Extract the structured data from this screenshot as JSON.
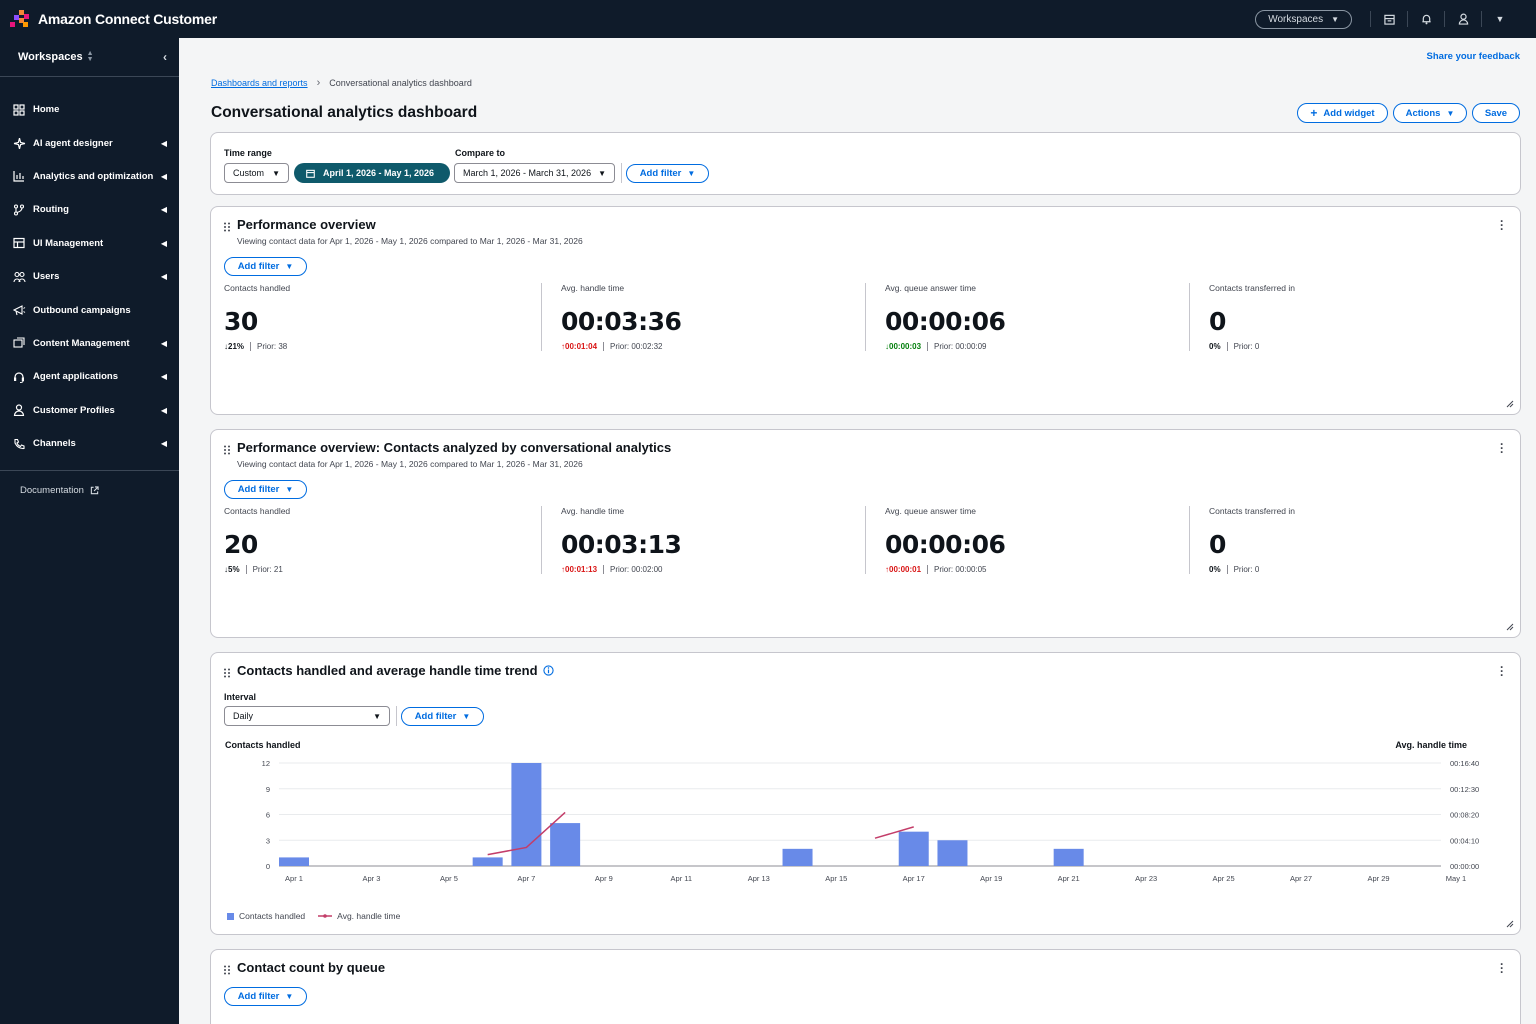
{
  "app": {
    "title": "Amazon Connect Customer"
  },
  "topbar": {
    "workspaces_label": "Workspaces"
  },
  "sidebar": {
    "header": "Workspaces",
    "items": [
      {
        "label": "Home",
        "icon": "home-grid-icon",
        "has_caret": false
      },
      {
        "label": "AI agent designer",
        "icon": "sparkle-icon",
        "has_caret": true
      },
      {
        "label": "Analytics and optimization",
        "icon": "bar-chart-icon",
        "has_caret": true
      },
      {
        "label": "Routing",
        "icon": "routing-icon",
        "has_caret": true
      },
      {
        "label": "UI Management",
        "icon": "layout-icon",
        "has_caret": true
      },
      {
        "label": "Users",
        "icon": "users-icon",
        "has_caret": true
      },
      {
        "label": "Outbound campaigns",
        "icon": "megaphone-icon",
        "has_caret": false
      },
      {
        "label": "Content Management",
        "icon": "content-icon",
        "has_caret": true
      },
      {
        "label": "Agent applications",
        "icon": "headset-icon",
        "has_caret": true
      },
      {
        "label": "Customer Profiles",
        "icon": "person-icon",
        "has_caret": true
      },
      {
        "label": "Channels",
        "icon": "phone-icon",
        "has_caret": true
      }
    ],
    "documentation": "Documentation"
  },
  "page": {
    "feedback": "Share your feedback",
    "breadcrumbs": [
      "Dashboards and reports",
      "Conversational analytics dashboard"
    ],
    "title": "Conversational analytics dashboard",
    "actions": {
      "add_widget": "Add widget",
      "actions": "Actions",
      "save": "Save"
    }
  },
  "filters": {
    "time_range_label": "Time range",
    "time_range_mode": "Custom",
    "time_range_value": "April 1, 2026 - May 1, 2026",
    "compare_label": "Compare to",
    "compare_value": "March 1, 2026 - March 31, 2026",
    "add_filter": "Add filter"
  },
  "widget1": {
    "title": "Performance overview",
    "subtitle": "Viewing contact data for Apr 1, 2026 - May 1, 2026 compared to Mar 1, 2026 - Mar 31, 2026",
    "add_filter": "Add filter",
    "metrics": [
      {
        "label": "Contacts handled",
        "value": "30",
        "delta": "21%",
        "direction": "down",
        "tone": "dark",
        "prior": "Prior: 38"
      },
      {
        "label": "Avg. handle time",
        "value": "00:03:36",
        "delta": "00:01:04",
        "direction": "up",
        "tone": "red",
        "prior": "Prior: 00:02:32"
      },
      {
        "label": "Avg. queue answer time",
        "value": "00:00:06",
        "delta": "00:00:03",
        "direction": "down",
        "tone": "green",
        "prior": "Prior: 00:00:09"
      },
      {
        "label": "Contacts transferred in",
        "value": "0",
        "delta": "0%",
        "direction": "none",
        "tone": "dark",
        "prior": "Prior: 0"
      }
    ]
  },
  "widget2": {
    "title": "Performance overview: Contacts analyzed by conversational analytics",
    "subtitle": "Viewing contact data for Apr 1, 2026 - May 1, 2026 compared to Mar 1, 2026 - Mar 31, 2026",
    "add_filter": "Add filter",
    "metrics": [
      {
        "label": "Contacts handled",
        "value": "20",
        "delta": "5%",
        "direction": "down",
        "tone": "dark",
        "prior": "Prior: 21"
      },
      {
        "label": "Avg. handle time",
        "value": "00:03:13",
        "delta": "00:01:13",
        "direction": "up",
        "tone": "red",
        "prior": "Prior: 00:02:00"
      },
      {
        "label": "Avg. queue answer time",
        "value": "00:00:06",
        "delta": "00:00:01",
        "direction": "up",
        "tone": "red",
        "prior": "Prior: 00:00:05"
      },
      {
        "label": "Contacts transferred in",
        "value": "0",
        "delta": "0%",
        "direction": "none",
        "tone": "dark",
        "prior": "Prior: 0"
      }
    ]
  },
  "widget3": {
    "title": "Contacts handled and average handle time trend",
    "interval_label": "Interval",
    "interval_value": "Daily",
    "add_filter": "Add filter",
    "legend": [
      "Contacts handled",
      "Avg. handle time"
    ]
  },
  "widget4": {
    "title": "Contact count by queue",
    "add_filter": "Add filter"
  },
  "colors": {
    "bar": "#688ae8",
    "line": "#c33d69",
    "accent": "#006ce0",
    "pill": "#0f5a6b"
  },
  "chart_data": {
    "type": "bar",
    "ylabel": "Contacts handled",
    "y2label": "Avg. handle time",
    "ylim": [
      0,
      12
    ],
    "yticks": [
      "0",
      "3",
      "6",
      "9",
      "12"
    ],
    "y2ticks": [
      "00:00:00",
      "00:04:10",
      "00:08:20",
      "00:12:30",
      "00:16:40"
    ],
    "x": [
      "Apr 1",
      "Apr 2",
      "Apr 3",
      "Apr 4",
      "Apr 5",
      "Apr 6",
      "Apr 7",
      "Apr 8",
      "Apr 9",
      "Apr 10",
      "Apr 11",
      "Apr 12",
      "Apr 13",
      "Apr 14",
      "Apr 15",
      "Apr 16",
      "Apr 17",
      "Apr 18",
      "Apr 19",
      "Apr 20",
      "Apr 21",
      "Apr 22",
      "Apr 23",
      "Apr 24",
      "Apr 25",
      "Apr 26",
      "Apr 27",
      "Apr 28",
      "Apr 29",
      "Apr 30",
      "May 1"
    ],
    "xtick_labels": [
      "Apr 1",
      "Apr 3",
      "Apr 5",
      "Apr 7",
      "Apr 9",
      "Apr 11",
      "Apr 13",
      "Apr 15",
      "Apr 17",
      "Apr 19",
      "Apr 21",
      "Apr 23",
      "Apr 25",
      "Apr 27",
      "Apr 29",
      "May 1"
    ],
    "series": [
      {
        "name": "Contacts handled",
        "type": "bar",
        "values": [
          1,
          0,
          0,
          0,
          0,
          1,
          12,
          5,
          0,
          0,
          0,
          0,
          0,
          2,
          0,
          0,
          4,
          3,
          0,
          0,
          2,
          0,
          0,
          0,
          0,
          0,
          0,
          0,
          0,
          0,
          0
        ]
      },
      {
        "name": "Avg. handle time",
        "type": "line",
        "segments": [
          {
            "x": [
              "Apr 6",
              "Apr 7",
              "Apr 8"
            ],
            "values": [
              "00:01:50",
              "00:03:00",
              "00:08:40"
            ]
          },
          {
            "x": [
              "Apr 16",
              "Apr 17"
            ],
            "values": [
              "00:04:30",
              "00:06:20"
            ]
          }
        ]
      }
    ]
  }
}
